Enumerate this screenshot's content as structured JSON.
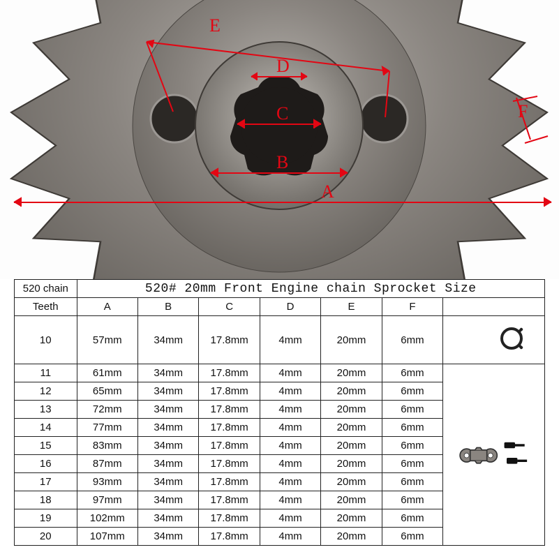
{
  "diagram": {
    "annotation_color": "#e30613",
    "sprocket_fill": "#7a7672",
    "sprocket_dark": "#57534f",
    "sprocket_light": "#9b9793",
    "labels": {
      "A": "A",
      "B": "B",
      "C": "C",
      "D": "D",
      "E": "E",
      "F": "F"
    }
  },
  "table": {
    "header_left": "520 chain",
    "header_title": "520# 20mm Front Engine chain Sprocket Size",
    "columns": [
      "Teeth",
      "A",
      "B",
      "C",
      "D",
      "E",
      "F"
    ],
    "rows": [
      {
        "teeth": "10",
        "A": "57mm",
        "B": "34mm",
        "C": "17.8mm",
        "D": "4mm",
        "E": "20mm",
        "F": "6mm",
        "tall": true
      },
      {
        "teeth": "11",
        "A": "61mm",
        "B": "34mm",
        "C": "17.8mm",
        "D": "4mm",
        "E": "20mm",
        "F": "6mm"
      },
      {
        "teeth": "12",
        "A": "65mm",
        "B": "34mm",
        "C": "17.8mm",
        "D": "4mm",
        "E": "20mm",
        "F": "6mm"
      },
      {
        "teeth": "13",
        "A": "72mm",
        "B": "34mm",
        "C": "17.8mm",
        "D": "4mm",
        "E": "20mm",
        "F": "6mm"
      },
      {
        "teeth": "14",
        "A": "77mm",
        "B": "34mm",
        "C": "17.8mm",
        "D": "4mm",
        "E": "20mm",
        "F": "6mm"
      },
      {
        "teeth": "15",
        "A": "83mm",
        "B": "34mm",
        "C": "17.8mm",
        "D": "4mm",
        "E": "20mm",
        "F": "6mm"
      },
      {
        "teeth": "16",
        "A": "87mm",
        "B": "34mm",
        "C": "17.8mm",
        "D": "4mm",
        "E": "20mm",
        "F": "6mm"
      },
      {
        "teeth": "17",
        "A": "93mm",
        "B": "34mm",
        "C": "17.8mm",
        "D": "4mm",
        "E": "20mm",
        "F": "6mm"
      },
      {
        "teeth": "18",
        "A": "97mm",
        "B": "34mm",
        "C": "17.8mm",
        "D": "4mm",
        "E": "20mm",
        "F": "6mm"
      },
      {
        "teeth": "19",
        "A": "102mm",
        "B": "34mm",
        "C": "17.8mm",
        "D": "4mm",
        "E": "20mm",
        "F": "6mm"
      },
      {
        "teeth": "20",
        "A": "107mm",
        "B": "34mm",
        "C": "17.8mm",
        "D": "4mm",
        "E": "20mm",
        "F": "6mm"
      }
    ],
    "parts_groups": [
      {
        "span": 1,
        "type": "circlip"
      },
      {
        "span": 10,
        "type": "plate_screws"
      }
    ]
  }
}
